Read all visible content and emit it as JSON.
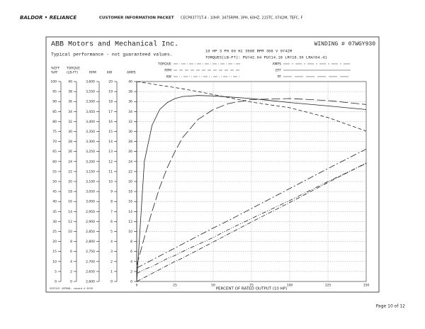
{
  "header": {
    "logo": "BALDOR • RELIANCE",
    "title": "CUSTOMER INFORMATION PACKET",
    "model": "CECP83771T-4 - 10HP, 3475RPM, 3PH, 60HZ, 215TC, 0742M, TEFC, F"
  },
  "sheet": {
    "company": "ABB Motors and Mechanical Inc.",
    "winding": "WINDING # 07WGY930",
    "note": "Typical performance - not guaranteed values.",
    "specs": "10 HP  3 PH  60 Hz  3500 RPM  368 V  0742M",
    "torques": "TORQUES(LB-FT): PU=42.64  PU=14.18  LR=18.36  LRA=64.41",
    "footnote": "VC0722Y 4CP086, record # 6YC0"
  },
  "chart_data": {
    "type": "line",
    "xlabel": "PERCENT OF RATED OUTPUT (10 HP)",
    "xlim": [
      0,
      150
    ],
    "xticks": [
      0,
      25,
      50,
      75,
      100,
      125,
      150
    ],
    "grid": true,
    "axes": [
      {
        "labels": [
          "%EFF",
          "%PF"
        ],
        "lim": [
          0,
          100
        ],
        "ticks": [
          0,
          5,
          10,
          15,
          20,
          25,
          30,
          35,
          40,
          45,
          50,
          55,
          60,
          65,
          70,
          75,
          80,
          85,
          90,
          95,
          100
        ]
      },
      {
        "labels": [
          "TORQUE",
          "(LB-FT)"
        ],
        "lim": [
          0,
          40
        ],
        "ticks": [
          0,
          2,
          4,
          6,
          8,
          10,
          12,
          14,
          16,
          18,
          20,
          22,
          24,
          26,
          28,
          30,
          32,
          34,
          36,
          38,
          40
        ]
      },
      {
        "labels": [
          "RPM"
        ],
        "lim": [
          2600,
          3600
        ],
        "ticks": [
          {
            "value": 2600,
            "label": "2,600"
          },
          {
            "value": 2650,
            "label": "2,650"
          },
          {
            "value": 2700,
            "label": "2,700"
          },
          {
            "value": 2750,
            "label": "2,750"
          },
          {
            "value": 2800,
            "label": "2,800"
          },
          {
            "value": 2850,
            "label": "2,850"
          },
          {
            "value": 2900,
            "label": "2,900"
          },
          {
            "value": 2950,
            "label": "2,950"
          },
          {
            "value": 3000,
            "label": "3,000"
          },
          {
            "value": 3050,
            "label": "3,050"
          },
          {
            "value": 3100,
            "label": "3,100"
          },
          {
            "value": 3150,
            "label": "3,150"
          },
          {
            "value": 3200,
            "label": "3,200"
          },
          {
            "value": 3250,
            "label": "3,250"
          },
          {
            "value": 3300,
            "label": "3,300"
          },
          {
            "value": 3350,
            "label": "3,350"
          },
          {
            "value": 3400,
            "label": "3,400"
          },
          {
            "value": 3450,
            "label": "3,450"
          },
          {
            "value": 3500,
            "label": "3,500"
          },
          {
            "value": 3550,
            "label": "3,550"
          },
          {
            "value": 3600,
            "label": "3,600"
          }
        ]
      },
      {
        "labels": [
          "KW"
        ],
        "lim": [
          0,
          20
        ],
        "ticks": [
          0,
          1,
          2,
          3,
          4,
          5,
          6,
          7,
          8,
          9,
          10,
          11,
          12,
          13,
          14,
          15,
          16,
          17,
          18,
          19,
          20
        ]
      },
      {
        "labels": [
          "AMPS"
        ],
        "lim": [
          0,
          40
        ],
        "ticks": [
          0,
          2,
          4,
          6,
          8,
          10,
          12,
          14,
          16,
          18,
          20,
          22,
          24,
          26,
          28,
          30,
          32,
          34,
          36,
          38,
          40
        ]
      }
    ],
    "x": [
      0,
      5,
      10,
      15,
      20,
      25,
      30,
      40,
      50,
      60,
      75,
      100,
      125,
      150
    ],
    "series": [
      {
        "name": "TORQUE",
        "axis": 1,
        "color": "#222",
        "dash": "6 2 1 2",
        "values": [
          0,
          0.8,
          1.6,
          2.4,
          3.2,
          4,
          4.7,
          6.3,
          7.9,
          9.5,
          11.9,
          15.8,
          19.8,
          23.7
        ]
      },
      {
        "name": "RPM",
        "axis": 2,
        "color": "#222",
        "dash": "5 3",
        "values": [
          3600,
          3594,
          3588,
          3582,
          3576,
          3570,
          3564,
          3550,
          3535,
          3520,
          3497,
          3469,
          3420,
          3352
        ]
      },
      {
        "name": "KW",
        "axis": 3,
        "color": "#222",
        "dash": "6 2 1 2 1 2",
        "values": [
          0.8,
          1.2,
          1.5,
          1.9,
          2.3,
          2.6,
          3,
          3.7,
          4.4,
          5.2,
          6.3,
          8.1,
          10,
          11.8
        ]
      },
      {
        "name": "AMPS",
        "axis": 4,
        "color": "#222",
        "dash": "9 3 2 3",
        "values": [
          2.7,
          3.5,
          4.3,
          5.1,
          5.9,
          6.7,
          7.5,
          9.1,
          10.7,
          12.2,
          14.6,
          18.6,
          22.6,
          26.5
        ]
      },
      {
        "name": "EFF",
        "axis": 0,
        "color": "#222",
        "dash": "none",
        "values": [
          0,
          60,
          78,
          86,
          89.5,
          91.5,
          92.5,
          93,
          92.8,
          92.3,
          91.5,
          89.5,
          87.8,
          86
        ]
      },
      {
        "name": "PF",
        "axis": 0,
        "color": "#222",
        "dash": "12 4",
        "values": [
          8,
          22,
          35,
          47,
          57,
          65,
          72,
          81,
          86,
          89,
          91,
          91.5,
          90.5,
          88.5
        ]
      }
    ]
  },
  "footer": {
    "page": "Page 10 of 12"
  }
}
